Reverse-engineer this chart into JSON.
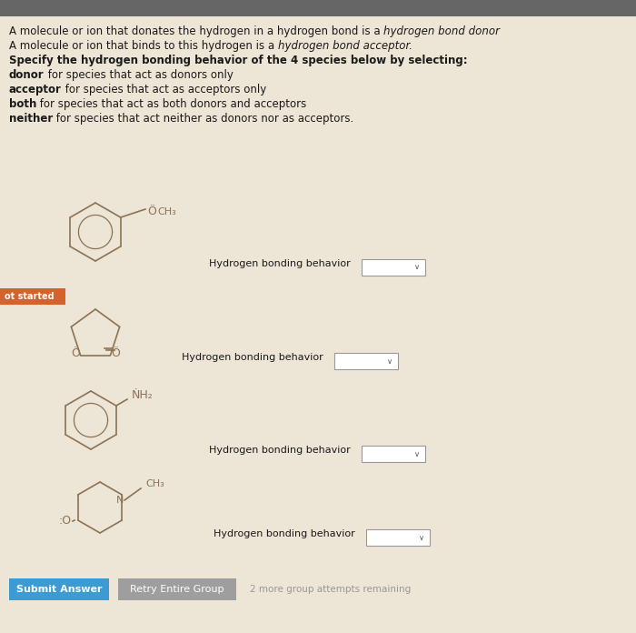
{
  "bg_color": "#ede5d5",
  "top_bar_color": "#666666",
  "text_color": "#1a1a1a",
  "mol_color": "#8B7355",
  "fs_main": 8.5,
  "fs_small": 7.5,
  "submit_btn_color": "#3d9bd4",
  "retry_btn_color": "#9e9e9e",
  "submit_text": "Submit Answer",
  "retry_text": "Retry Entire Group",
  "attempts_text": "2 more group attempts remaining",
  "not_started_color": "#d4622a",
  "not_started_text": "ot started",
  "dropdown_label": "Hydrogen bonding behavior",
  "line1_main": "A molecule or ion that donates the hydrogen in a hydrogen bond is a ",
  "line1_italic": "hydrogen bond donor",
  "line2_main": "A molecule or ion that binds to this hydrogen is a ",
  "line2_italic": "hydrogen bond acceptor.",
  "line3": "Specify the hydrogen bonding behavior of the 4 species below by selecting:",
  "line4_bold": "donor",
  "line4_rest": " for species that act as donors only",
  "line5_bold": "acceptor",
  "line5_rest": " for species that act as acceptors only",
  "line6_bold": "both",
  "line6_rest": " for species that act as both donors and acceptors",
  "line7_bold": "neither",
  "line7_rest": " for species that act neither as donors nor as acceptors."
}
